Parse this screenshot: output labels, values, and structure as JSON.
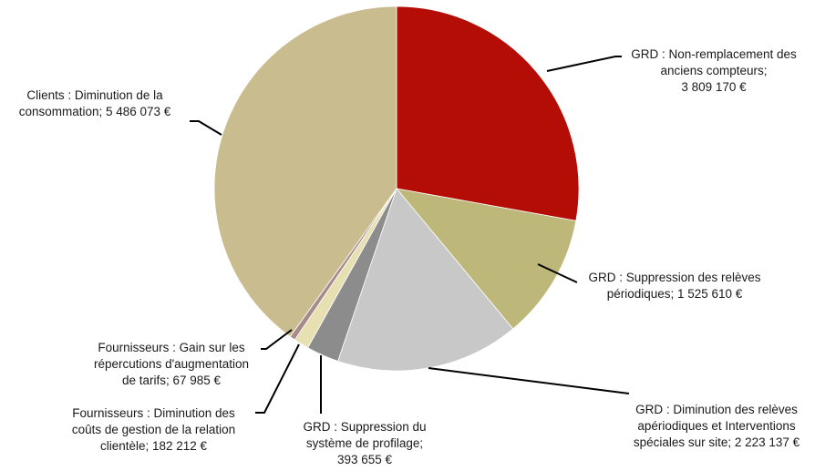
{
  "chart_data": {
    "type": "pie",
    "unit": "€",
    "slices": [
      {
        "label": "GRD : Non-remplacement des anciens compteurs",
        "value": 3809170,
        "value_text": "3 809 170 €",
        "color": "#B40D05"
      },
      {
        "label": "GRD : Suppression des relèves périodiques",
        "value": 1525610,
        "value_text": "1 525 610 €",
        "color": "#BDB879"
      },
      {
        "label": "GRD : Diminution des relèves apériodiques et Interventions spéciales sur site",
        "value": 2223137,
        "value_text": "2 223 137 €",
        "color": "#C8C8C8"
      },
      {
        "label": "GRD : Suppression du système de profilage",
        "value": 393655,
        "value_text": "393 655 €",
        "color": "#8C8C8C"
      },
      {
        "label": "Fournisseurs : Diminution des coûts de gestion de la relation clientèle",
        "value": 182212,
        "value_text": "182 212 €",
        "color": "#E6E0B2"
      },
      {
        "label": "Fournisseurs : Gain sur les répercutions d'augmentation de tarifs",
        "value": 67985,
        "value_text": "67 985 €",
        "color": "#A78A8A"
      },
      {
        "label": "Clients : Diminution de la consommation",
        "value": 5486073,
        "value_text": "5 486 073 €",
        "color": "#C9BD8F"
      }
    ]
  },
  "labels": {
    "s0": [
      "GRD : Non-remplacement des",
      "anciens compteurs;",
      "3 809 170 €"
    ],
    "s1": [
      "GRD : Suppression des relèves",
      "périodiques;  1 525 610 €"
    ],
    "s2": [
      "GRD : Diminution des relèves",
      "apériodiques et Interventions",
      "spéciales sur site;  2 223 137 €"
    ],
    "s3": [
      "GRD : Suppression du",
      "système de profilage;",
      "393 655 €"
    ],
    "s4": [
      "Fournisseurs : Diminution des",
      "coûts de gestion de la relation",
      "clientèle;  182 212 €"
    ],
    "s5": [
      "Fournisseurs : Gain sur les",
      "répercutions d'augmentation",
      "de tarifs;  67 985 €"
    ],
    "s6": [
      "Clients : Diminution de la",
      "consommation;  5 486 073 €"
    ]
  }
}
